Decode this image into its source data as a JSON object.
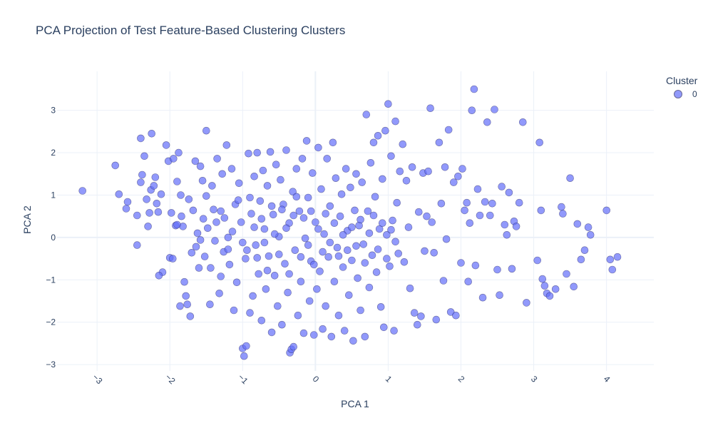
{
  "chart_data": {
    "type": "scatter",
    "title": "PCA Projection of Test Feature-Based Clustering Clusters",
    "xlabel": "PCA 1",
    "ylabel": "PCA 2",
    "xlim": [
      -3.55,
      4.65
    ],
    "ylim": [
      -3.15,
      3.92
    ],
    "x_ticks": [
      -3,
      -2,
      -1,
      0,
      1,
      2,
      3,
      4
    ],
    "y_ticks": [
      -3,
      -2,
      -1,
      0,
      1,
      2,
      3
    ],
    "grid": true,
    "legend": {
      "title": "Cluster",
      "position": "top-right"
    },
    "series": [
      {
        "name": "0",
        "color": "#636efa",
        "points": [
          [
            -3.2,
            1.1
          ],
          [
            -2.75,
            1.7
          ],
          [
            -2.7,
            1.02
          ],
          [
            -2.58,
            0.84
          ],
          [
            -2.6,
            0.68
          ],
          [
            -2.45,
            -0.18
          ],
          [
            -2.45,
            0.52
          ],
          [
            -2.4,
            2.34
          ],
          [
            -2.38,
            1.48
          ],
          [
            -2.35,
            1.92
          ],
          [
            -2.32,
            0.9
          ],
          [
            -2.3,
            0.26
          ],
          [
            -2.28,
            0.58
          ],
          [
            -2.26,
            1.12
          ],
          [
            -2.25,
            2.45
          ],
          [
            -2.22,
            1.22
          ],
          [
            -2.2,
            1.42
          ],
          [
            -2.18,
            0.8
          ],
          [
            -2.16,
            0.6
          ],
          [
            -2.12,
            1.02
          ],
          [
            -2.1,
            -0.82
          ],
          [
            -2.05,
            2.18
          ],
          [
            -2.02,
            1.8
          ],
          [
            -2.0,
            -0.48
          ],
          [
            -1.98,
            0.58
          ],
          [
            -1.95,
            1.86
          ],
          [
            -1.92,
            0.28
          ],
          [
            -1.9,
            1.32
          ],
          [
            -1.88,
            2.0
          ],
          [
            -1.86,
            -1.62
          ],
          [
            -1.85,
            1.0
          ],
          [
            -1.82,
            0.26
          ],
          [
            -1.8,
            -1.05
          ],
          [
            -1.78,
            -1.38
          ],
          [
            -1.76,
            -1.58
          ],
          [
            -1.74,
            0.9
          ],
          [
            -1.72,
            -1.86
          ],
          [
            -1.7,
            -0.36
          ],
          [
            -1.68,
            0.64
          ],
          [
            -1.65,
            1.8
          ],
          [
            -1.62,
            0.1
          ],
          [
            -1.6,
            -0.72
          ],
          [
            -1.58,
            1.68
          ],
          [
            -1.55,
            1.34
          ],
          [
            -1.52,
            -0.45
          ],
          [
            -1.5,
            2.52
          ],
          [
            -1.48,
            0.22
          ],
          [
            -1.45,
            -1.58
          ],
          [
            -1.42,
            1.22
          ],
          [
            -1.4,
            0.66
          ],
          [
            -1.38,
            -0.08
          ],
          [
            -1.35,
            1.86
          ],
          [
            -1.32,
            -1.32
          ],
          [
            -1.3,
            -0.92
          ],
          [
            -1.28,
            1.5
          ],
          [
            -1.25,
            0.46
          ],
          [
            -1.22,
            2.18
          ],
          [
            -1.2,
            0.0
          ],
          [
            -1.18,
            -0.64
          ],
          [
            -1.15,
            1.62
          ],
          [
            -1.12,
            -1.72
          ],
          [
            -1.1,
            0.78
          ],
          [
            -1.08,
            -1.06
          ],
          [
            -1.05,
            1.28
          ],
          [
            -1.02,
            0.36
          ],
          [
            -1.0,
            -2.62
          ],
          [
            -0.98,
            -2.8
          ],
          [
            -0.96,
            -0.5
          ],
          [
            -0.95,
            -2.56
          ],
          [
            -0.92,
            1.98
          ],
          [
            -0.9,
            -1.78
          ],
          [
            -0.88,
            0.56
          ],
          [
            -0.86,
            -1.38
          ],
          [
            -0.84,
            1.44
          ],
          [
            -0.82,
            -0.18
          ],
          [
            -0.8,
            2.0
          ],
          [
            -0.78,
            -0.86
          ],
          [
            -0.76,
            0.86
          ],
          [
            -0.74,
            -1.96
          ],
          [
            -0.72,
            1.58
          ],
          [
            -0.7,
            0.2
          ],
          [
            -0.68,
            -1.22
          ],
          [
            -0.66,
            1.22
          ],
          [
            -0.64,
            -0.44
          ],
          [
            -0.62,
            2.02
          ],
          [
            -0.6,
            -2.24
          ],
          [
            -0.58,
            0.54
          ],
          [
            -0.56,
            -0.9
          ],
          [
            -0.54,
            1.72
          ],
          [
            -0.52,
            -1.62
          ],
          [
            -0.5,
            0.02
          ],
          [
            -0.48,
            1.36
          ],
          [
            -0.46,
            -2.06
          ],
          [
            -0.44,
            0.78
          ],
          [
            -0.42,
            -0.62
          ],
          [
            -0.4,
            2.06
          ],
          [
            -0.38,
            -1.3
          ],
          [
            -0.36,
            0.34
          ],
          [
            -0.35,
            -2.72
          ],
          [
            -0.33,
            -2.64
          ],
          [
            -0.31,
            1.08
          ],
          [
            -0.3,
            -2.58
          ],
          [
            -0.28,
            -0.3
          ],
          [
            -0.26,
            1.62
          ],
          [
            -0.24,
            -1.84
          ],
          [
            -0.22,
            0.62
          ],
          [
            -0.2,
            -1.04
          ],
          [
            -0.18,
            1.86
          ],
          [
            -0.16,
            -2.26
          ],
          [
            -0.14,
            -0.02
          ],
          [
            -0.12,
            2.28
          ],
          [
            -0.1,
            0.94
          ],
          [
            -0.08,
            -1.5
          ],
          [
            -0.06,
            -0.56
          ],
          [
            -0.04,
            1.52
          ],
          [
            -0.02,
            -2.3
          ],
          [
            0.0,
            0.36
          ],
          [
            0.02,
            -1.22
          ],
          [
            0.04,
            2.12
          ],
          [
            0.06,
            -0.8
          ],
          [
            0.08,
            1.14
          ],
          [
            0.1,
            -2.16
          ],
          [
            0.12,
            0.08
          ],
          [
            0.14,
            -1.62
          ],
          [
            0.16,
            1.86
          ],
          [
            0.18,
            -0.46
          ],
          [
            0.2,
            0.74
          ],
          [
            0.22,
            -2.34
          ],
          [
            0.24,
            2.24
          ],
          [
            0.26,
            -1.04
          ],
          [
            0.28,
            1.4
          ],
          [
            0.3,
            -0.24
          ],
          [
            0.32,
            -1.84
          ],
          [
            0.34,
            0.5
          ],
          [
            0.36,
            1.02
          ],
          [
            0.38,
            -0.7
          ],
          [
            0.4,
            -2.2
          ],
          [
            0.42,
            1.62
          ],
          [
            0.44,
            0.16
          ],
          [
            0.46,
            -1.36
          ],
          [
            0.48,
            1.18
          ],
          [
            0.5,
            -0.54
          ],
          [
            0.52,
            -2.44
          ],
          [
            0.54,
            0.64
          ],
          [
            0.56,
            1.5
          ],
          [
            0.58,
            -0.96
          ],
          [
            0.6,
            0.28
          ],
          [
            0.62,
            -1.72
          ],
          [
            0.64,
            1.3
          ],
          [
            0.66,
            -0.16
          ],
          [
            0.68,
            -2.34
          ],
          [
            0.7,
            2.9
          ],
          [
            0.72,
            0.62
          ],
          [
            0.74,
            -1.18
          ],
          [
            0.76,
            1.76
          ],
          [
            0.78,
            -0.42
          ],
          [
            0.8,
            2.24
          ],
          [
            0.82,
            0.96
          ],
          [
            0.84,
            -0.82
          ],
          [
            0.86,
            2.4
          ],
          [
            0.88,
            0.2
          ],
          [
            0.9,
            -1.64
          ],
          [
            0.92,
            1.38
          ],
          [
            0.94,
            -2.12
          ],
          [
            0.96,
            2.52
          ],
          [
            0.98,
            0.06
          ],
          [
            1.0,
            3.15
          ],
          [
            1.02,
            -0.68
          ],
          [
            1.04,
            1.92
          ],
          [
            1.06,
            0.4
          ],
          [
            1.08,
            -2.2
          ],
          [
            1.1,
            2.74
          ],
          [
            1.12,
            0.82
          ],
          [
            1.14,
            -0.38
          ],
          [
            1.16,
            1.56
          ],
          [
            1.2,
            2.2
          ],
          [
            1.22,
            -0.58
          ],
          [
            1.25,
            1.34
          ],
          [
            1.28,
            0.24
          ],
          [
            1.3,
            -1.2
          ],
          [
            1.33,
            1.66
          ],
          [
            1.36,
            -1.78
          ],
          [
            1.4,
            -2.06
          ],
          [
            1.42,
            0.6
          ],
          [
            1.45,
            -1.86
          ],
          [
            1.48,
            1.52
          ],
          [
            1.5,
            -0.32
          ],
          [
            1.53,
            0.5
          ],
          [
            1.55,
            1.56
          ],
          [
            1.58,
            3.05
          ],
          [
            1.6,
            0.36
          ],
          [
            1.63,
            -0.36
          ],
          [
            1.66,
            -1.94
          ],
          [
            1.7,
            2.24
          ],
          [
            1.73,
            0.8
          ],
          [
            1.76,
            -1.02
          ],
          [
            1.78,
            1.66
          ],
          [
            1.8,
            -0.04
          ],
          [
            1.83,
            2.54
          ],
          [
            1.86,
            -1.76
          ],
          [
            1.9,
            1.3
          ],
          [
            1.93,
            -1.84
          ],
          [
            1.96,
            1.44
          ],
          [
            2.0,
            -0.6
          ],
          [
            2.02,
            1.62
          ],
          [
            2.05,
            0.64
          ],
          [
            2.08,
            0.82
          ],
          [
            2.1,
            -1.04
          ],
          [
            2.12,
            0.34
          ],
          [
            2.15,
            3.0
          ],
          [
            2.18,
            3.5
          ],
          [
            2.2,
            -0.66
          ],
          [
            2.23,
            1.14
          ],
          [
            2.26,
            0.52
          ],
          [
            2.3,
            -1.42
          ],
          [
            2.33,
            0.84
          ],
          [
            2.36,
            2.72
          ],
          [
            2.4,
            0.52
          ],
          [
            2.43,
            0.8
          ],
          [
            2.46,
            3.02
          ],
          [
            2.5,
            -0.76
          ],
          [
            2.53,
            -1.36
          ],
          [
            2.56,
            1.2
          ],
          [
            2.6,
            0.3
          ],
          [
            2.63,
            0.06
          ],
          [
            2.66,
            1.06
          ],
          [
            2.7,
            -0.74
          ],
          [
            2.73,
            0.38
          ],
          [
            2.76,
            0.26
          ],
          [
            2.8,
            0.82
          ],
          [
            2.85,
            2.72
          ],
          [
            2.9,
            -1.54
          ],
          [
            3.05,
            -0.54
          ],
          [
            3.08,
            2.24
          ],
          [
            3.1,
            0.64
          ],
          [
            3.12,
            -0.98
          ],
          [
            3.15,
            -1.14
          ],
          [
            3.18,
            -1.32
          ],
          [
            3.22,
            -1.38
          ],
          [
            3.3,
            -1.22
          ],
          [
            3.38,
            0.72
          ],
          [
            3.4,
            0.56
          ],
          [
            3.45,
            -0.86
          ],
          [
            3.5,
            1.4
          ],
          [
            3.55,
            -1.16
          ],
          [
            3.6,
            0.32
          ],
          [
            3.65,
            -0.52
          ],
          [
            3.7,
            -0.3
          ],
          [
            3.75,
            0.24
          ],
          [
            3.78,
            0.06
          ],
          [
            4.0,
            0.64
          ],
          [
            4.05,
            -0.52
          ],
          [
            4.08,
            -0.76
          ],
          [
            4.15,
            -0.46
          ],
          [
            -2.4,
            1.3
          ],
          [
            -2.15,
            -0.9
          ],
          [
            -1.96,
            -0.5
          ],
          [
            -1.9,
            0.3
          ],
          [
            -1.84,
            0.5
          ],
          [
            -1.64,
            -0.22
          ],
          [
            -1.58,
            -0.06
          ],
          [
            -1.54,
            0.44
          ],
          [
            -1.5,
            0.98
          ],
          [
            -1.44,
            -0.72
          ],
          [
            -1.36,
            0.36
          ],
          [
            -1.3,
            0.62
          ],
          [
            -1.26,
            -0.34
          ],
          [
            -1.2,
            -0.28
          ],
          [
            -1.14,
            0.14
          ],
          [
            -1.06,
            0.88
          ],
          [
            -1.0,
            -0.12
          ],
          [
            -0.94,
            -0.3
          ],
          [
            -0.9,
            0.94
          ],
          [
            -0.84,
            0.24
          ],
          [
            -0.8,
            -0.48
          ],
          [
            -0.74,
            0.44
          ],
          [
            -0.7,
            -0.12
          ],
          [
            -0.66,
            -0.78
          ],
          [
            -0.6,
            0.74
          ],
          [
            -0.56,
            0.08
          ],
          [
            -0.5,
            -0.4
          ],
          [
            -0.46,
            0.66
          ],
          [
            -0.4,
            0.22
          ],
          [
            -0.36,
            -0.86
          ],
          [
            -0.3,
            0.52
          ],
          [
            -0.26,
            0.96
          ],
          [
            -0.2,
            -0.46
          ],
          [
            -0.16,
            0.46
          ],
          [
            -0.1,
            -0.18
          ],
          [
            -0.06,
            0.62
          ],
          [
            -0.02,
            -0.64
          ],
          [
            0.04,
            0.2
          ],
          [
            0.1,
            -0.34
          ],
          [
            0.14,
            0.56
          ],
          [
            0.2,
            -0.12
          ],
          [
            0.26,
            0.34
          ],
          [
            0.32,
            -0.44
          ],
          [
            0.38,
            0.06
          ],
          [
            0.44,
            -0.3
          ],
          [
            0.5,
            0.24
          ],
          [
            0.56,
            -0.2
          ],
          [
            0.62,
            0.42
          ],
          [
            0.68,
            -0.6
          ],
          [
            0.74,
            0.1
          ],
          [
            0.8,
            0.52
          ],
          [
            0.86,
            -0.28
          ],
          [
            0.92,
            0.34
          ],
          [
            0.98,
            -0.5
          ],
          [
            1.04,
            0.18
          ],
          [
            1.1,
            -0.1
          ]
        ]
      }
    ]
  }
}
